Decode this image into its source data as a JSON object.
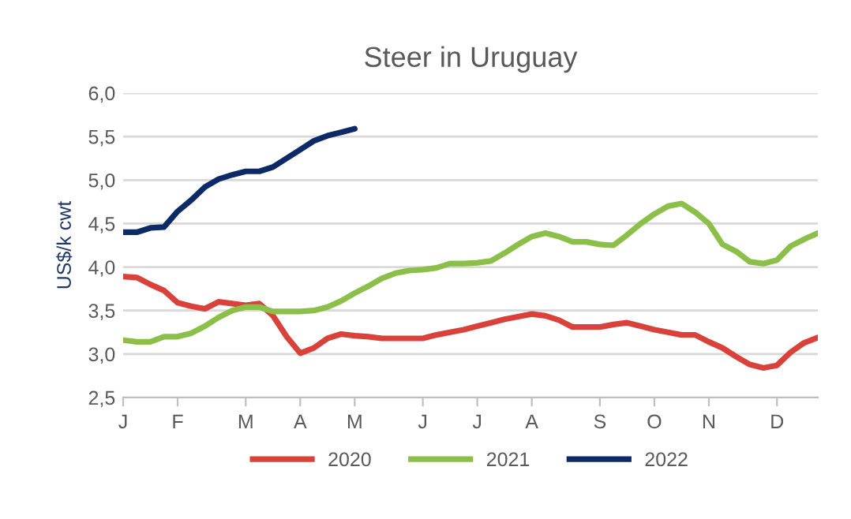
{
  "chart_data": {
    "type": "line",
    "title": "Steer in Uruguay",
    "ylabel": "US$/k cwt",
    "categories": [
      "J",
      null,
      null,
      null,
      "F",
      null,
      null,
      null,
      null,
      "M",
      null,
      null,
      null,
      "A",
      null,
      null,
      null,
      "M",
      null,
      null,
      null,
      null,
      "J",
      null,
      null,
      null,
      "J",
      null,
      null,
      null,
      "A",
      null,
      null,
      null,
      null,
      "S",
      null,
      null,
      null,
      "O",
      null,
      null,
      null,
      "N",
      null,
      null,
      null,
      null,
      "D",
      null,
      null,
      null
    ],
    "ylim": [
      2.5,
      6.0
    ],
    "yticks": [
      {
        "value": 2.5,
        "label": "2,5"
      },
      {
        "value": 3.0,
        "label": "3,0"
      },
      {
        "value": 3.5,
        "label": "3,5"
      },
      {
        "value": 4.0,
        "label": "4,0"
      },
      {
        "value": 4.5,
        "label": "4,5"
      },
      {
        "value": 5.0,
        "label": "5,0"
      },
      {
        "value": 5.5,
        "label": "5,5"
      },
      {
        "value": 6.0,
        "label": "6,0"
      }
    ],
    "grid": "y",
    "legend": "bottom",
    "marker": "none",
    "line_style": "solid",
    "series": [
      {
        "name": "2020",
        "color": "#d9413b",
        "values": [
          3.89,
          3.88,
          3.8,
          3.73,
          3.59,
          3.55,
          3.52,
          3.6,
          3.58,
          3.56,
          3.58,
          3.44,
          3.2,
          3.01,
          3.07,
          3.18,
          3.23,
          3.21,
          3.2,
          3.18,
          3.18,
          3.18,
          3.18,
          3.22,
          3.25,
          3.28,
          3.32,
          3.36,
          3.4,
          3.43,
          3.46,
          3.44,
          3.39,
          3.31,
          3.31,
          3.31,
          3.34,
          3.36,
          3.32,
          3.28,
          3.25,
          3.22,
          3.22,
          3.14,
          3.07,
          2.97,
          2.88,
          2.84,
          2.87,
          3.02,
          3.13,
          3.19
        ]
      },
      {
        "name": "2021",
        "color": "#8cbf4a",
        "values": [
          3.16,
          3.14,
          3.14,
          3.2,
          3.2,
          3.24,
          3.32,
          3.42,
          3.5,
          3.54,
          3.54,
          3.49,
          3.49,
          3.49,
          3.5,
          3.54,
          3.61,
          3.7,
          3.78,
          3.87,
          3.93,
          3.96,
          3.97,
          3.99,
          4.04,
          4.04,
          4.05,
          4.07,
          4.16,
          4.26,
          4.35,
          4.39,
          4.35,
          4.29,
          4.29,
          4.26,
          4.25,
          4.37,
          4.5,
          4.61,
          4.7,
          4.73,
          4.63,
          4.5,
          4.26,
          4.18,
          4.06,
          4.04,
          4.08,
          4.24,
          4.32,
          4.39
        ]
      },
      {
        "name": "2022",
        "color": "#0d2a66",
        "values": [
          4.4,
          4.4,
          4.45,
          4.46,
          4.64,
          4.77,
          4.92,
          5.01,
          5.06,
          5.1,
          5.1,
          5.15,
          5.25,
          5.35,
          5.45,
          5.51,
          5.55,
          5.59,
          null,
          null,
          null,
          null,
          null,
          null,
          null,
          null,
          null,
          null,
          null,
          null,
          null,
          null,
          null,
          null,
          null,
          null,
          null,
          null,
          null,
          null,
          null,
          null,
          null,
          null,
          null,
          null,
          null,
          null,
          null,
          null,
          null,
          null
        ]
      }
    ]
  }
}
